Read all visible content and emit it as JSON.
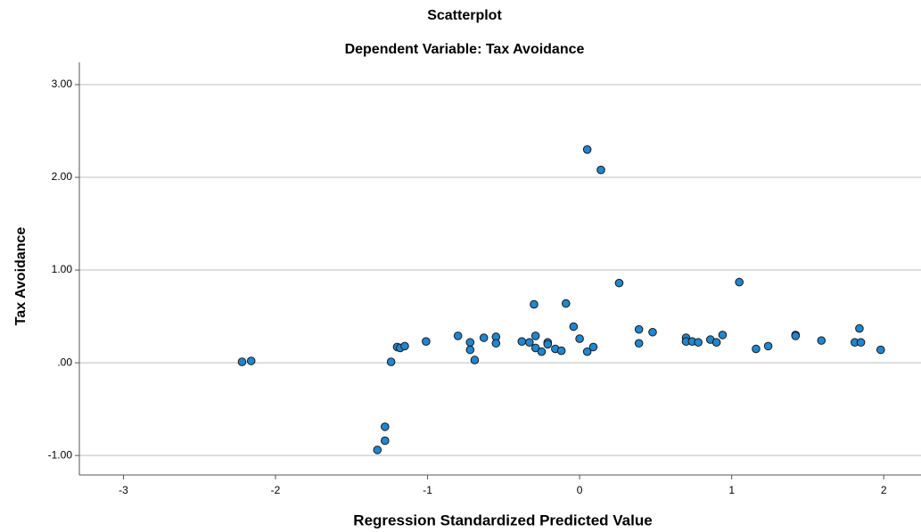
{
  "chart_data": {
    "type": "scatter",
    "title": "Scatterplot",
    "subtitle": "Dependent Variable: Tax Avoidance",
    "x_label": "Regression Standardized Predicted Value",
    "y_label": "Tax Avoidance",
    "xlim": [
      -3.29,
      2.245
    ],
    "ylim": [
      -1.21,
      3.24
    ],
    "xticks": [
      -3,
      -2,
      -1,
      0,
      1,
      2
    ],
    "yticks": [
      {
        "value": 3,
        "label": "3.00"
      },
      {
        "value": 2,
        "label": "2.00"
      },
      {
        "value": 1,
        "label": "1.00"
      },
      {
        "value": 0,
        "label": ".00"
      },
      {
        "value": -1,
        "label": "-1.00"
      }
    ],
    "grid": true,
    "color": "#1f86d1",
    "series": [
      {
        "name": "Tax Avoidance",
        "color": "#1f86d1",
        "x": [
          -2.22,
          -2.16,
          -1.33,
          -1.28,
          -1.28,
          -1.24,
          -1.2,
          -1.18,
          -1.15,
          -1.01,
          -0.8,
          -0.72,
          -0.72,
          -0.69,
          -0.63,
          -0.55,
          -0.55,
          -0.38,
          -0.33,
          -0.3,
          -0.29,
          -0.29,
          -0.25,
          -0.21,
          -0.21,
          -0.16,
          -0.12,
          -0.09,
          -0.04,
          0.0,
          0.05,
          0.05,
          0.09,
          0.14,
          0.26,
          0.39,
          0.39,
          0.48,
          0.7,
          0.7,
          0.74,
          0.78,
          0.86,
          0.9,
          0.94,
          1.05,
          1.16,
          1.24,
          1.42,
          1.42,
          1.59,
          1.81,
          1.84,
          1.85,
          1.98
        ],
        "values": [
          0.01,
          0.02,
          -0.94,
          -0.69,
          -0.84,
          0.01,
          0.17,
          0.16,
          0.18,
          0.23,
          0.29,
          0.22,
          0.14,
          0.03,
          0.27,
          0.28,
          0.21,
          0.23,
          0.22,
          0.63,
          0.29,
          0.16,
          0.12,
          0.22,
          0.2,
          0.15,
          0.13,
          0.64,
          0.39,
          0.26,
          2.3,
          0.12,
          0.17,
          2.08,
          0.86,
          0.36,
          0.21,
          0.33,
          0.27,
          0.23,
          0.23,
          0.22,
          0.25,
          0.22,
          0.3,
          0.87,
          0.15,
          0.18,
          0.3,
          0.29,
          0.24,
          0.22,
          0.37,
          0.22,
          0.14
        ]
      }
    ]
  }
}
